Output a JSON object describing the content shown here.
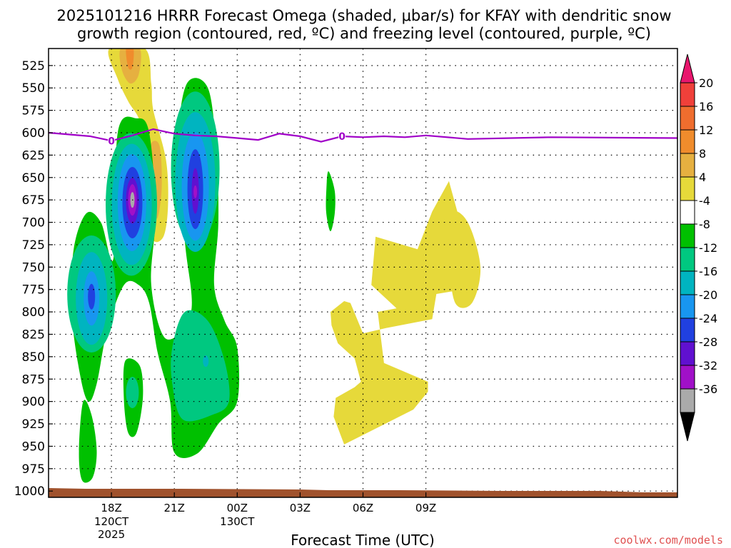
{
  "chart_data": {
    "type": "heatmap",
    "title_line1": "2025101216 HRRR Forecast Omega (shaded, μbar/s) for KFAY with dendritic snow",
    "title_line2": "growth region (contoured, red, ºC) and freezing level (contoured, purple, ºC)",
    "xlabel": "Forecast Time (UTC)",
    "credit": "coolwx.com/models",
    "x_range_hours": [
      -3,
      27
    ],
    "y_range_mb": [
      1007,
      506
    ],
    "y_ticks": [
      "525",
      "550",
      "575",
      "600",
      "625",
      "650",
      "675",
      "700",
      "725",
      "750",
      "775",
      "800",
      "825",
      "850",
      "875",
      "900",
      "925",
      "950",
      "975",
      "1000"
    ],
    "x_ticks": [
      {
        "hour": 0,
        "label": "18Z",
        "sub1": "120CT",
        "sub2": "2025"
      },
      {
        "hour": 3,
        "label": "21Z",
        "sub1": "",
        "sub2": ""
      },
      {
        "hour": 6,
        "label": "00Z",
        "sub1": "130CT",
        "sub2": ""
      },
      {
        "hour": 9,
        "label": "03Z",
        "sub1": "",
        "sub2": ""
      },
      {
        "hour": 12,
        "label": "06Z",
        "sub1": "",
        "sub2": ""
      },
      {
        "hour": 15,
        "label": "09Z",
        "sub1": "",
        "sub2": ""
      }
    ],
    "colorbar": {
      "labels": [
        "20",
        "16",
        "12",
        "8",
        "4",
        "-4",
        "-8",
        "-12",
        "-16",
        "-20",
        "-24",
        "-28",
        "-32",
        "-36"
      ],
      "colors": [
        "#e8166d",
        "#f0403a",
        "#ef6d2e",
        "#f08c2c",
        "#e6b040",
        "#e6d93a",
        "#ffffff",
        "#00c000",
        "#00c880",
        "#00b4c0",
        "#1896f0",
        "#2040e0",
        "#6010d0",
        "#a010c8",
        "#aaaaaa",
        "#000000"
      ]
    },
    "freezing_level": {
      "color": "#a000c8",
      "label": "0",
      "points": [
        [
          -3,
          600
        ],
        [
          -1,
          604
        ],
        [
          0,
          609
        ],
        [
          1,
          603
        ],
        [
          2,
          596
        ],
        [
          3,
          601
        ],
        [
          4,
          603
        ],
        [
          5,
          604
        ],
        [
          6,
          606
        ],
        [
          7,
          608
        ],
        [
          8,
          601
        ],
        [
          9,
          604
        ],
        [
          10,
          610
        ],
        [
          11,
          604
        ],
        [
          12,
          605
        ],
        [
          13,
          604
        ],
        [
          14,
          605
        ],
        [
          15,
          603
        ],
        [
          17,
          607
        ],
        [
          21,
          605
        ],
        [
          27,
          606
        ]
      ],
      "label_hours": [
        0,
        11
      ]
    },
    "omega_regions": [
      {
        "name": "upward-core-18z",
        "levels": [
          -8,
          -12,
          -16,
          -20,
          -24,
          -28,
          -32,
          -36
        ],
        "center": [
          1,
          672
        ]
      },
      {
        "name": "upward-core-22z",
        "levels": [
          -8,
          -12,
          -16,
          -20,
          -24,
          -28,
          -32
        ],
        "center": [
          4,
          665
        ]
      },
      {
        "name": "upward-core-17z",
        "levels": [
          -8,
          -12,
          -16,
          -20,
          -24
        ],
        "center": [
          -1,
          785
        ]
      },
      {
        "name": "lower-upward-23z",
        "levels": [
          -8,
          -12,
          -16
        ],
        "center": [
          4.5,
          860
        ]
      },
      {
        "name": "downward-top-18z",
        "levels": [
          4,
          8,
          12
        ],
        "center": [
          0.8,
          520
        ]
      },
      {
        "name": "downward-05z",
        "levels": [
          4
        ],
        "center": [
          12,
          830
        ]
      },
      {
        "name": "downward-10z",
        "levels": [
          4
        ],
        "center": [
          15.5,
          740
        ]
      }
    ],
    "ground_color": "#a0522d"
  }
}
